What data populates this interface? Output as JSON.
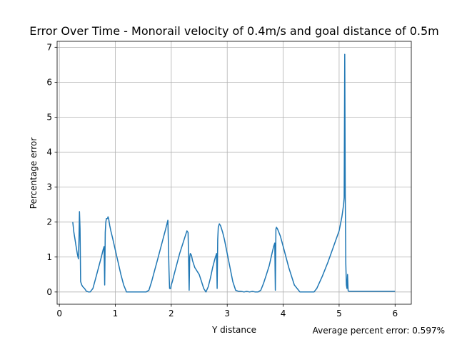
{
  "chart_data": {
    "type": "line",
    "title": "Error Over Time - Monorail velocity of 0.4m/s and goal distance of 0.5m",
    "xlabel": "Y distance",
    "ylabel": "Percentage error",
    "xlim": [
      -0.04,
      6.29
    ],
    "ylim": [
      -0.35,
      7.17
    ],
    "xticks": [
      0,
      1,
      2,
      3,
      4,
      5,
      6
    ],
    "yticks": [
      0,
      1,
      2,
      3,
      4,
      5,
      6,
      7
    ],
    "grid": true,
    "annotation": "Average percent error: 0.597%",
    "series": [
      {
        "color": "#1f77b4",
        "x": [
          0.24,
          0.26,
          0.28,
          0.3,
          0.32,
          0.34,
          0.35,
          0.36,
          0.37,
          0.38,
          0.39,
          0.4,
          0.42,
          0.45,
          0.48,
          0.52,
          0.55,
          0.6,
          0.65,
          0.7,
          0.75,
          0.78,
          0.8,
          0.81,
          0.82,
          0.83,
          0.84,
          0.86,
          0.87,
          0.88,
          0.89,
          0.9,
          0.92,
          0.95,
          1.0,
          1.05,
          1.1,
          1.15,
          1.2,
          1.25,
          1.4,
          1.55,
          1.6,
          1.65,
          1.7,
          1.75,
          1.8,
          1.85,
          1.9,
          1.94,
          1.96,
          1.97,
          1.99,
          2.0,
          2.02,
          2.05,
          2.1,
          2.15,
          2.2,
          2.25,
          2.28,
          2.3,
          2.32,
          2.33,
          2.34,
          2.36,
          2.38,
          2.42,
          2.46,
          2.5,
          2.54,
          2.58,
          2.62,
          2.66,
          2.7,
          2.74,
          2.78,
          2.81,
          2.82,
          2.83,
          2.84,
          2.86,
          2.88,
          2.9,
          2.92,
          2.95,
          3.0,
          3.05,
          3.1,
          3.15,
          3.2,
          3.25,
          3.3,
          3.35,
          3.4,
          3.45,
          3.5,
          3.55,
          3.6,
          3.65,
          3.7,
          3.75,
          3.8,
          3.83,
          3.85,
          3.86,
          3.87,
          3.88,
          3.9,
          3.95,
          4.0,
          4.1,
          4.2,
          4.3,
          4.4,
          4.45,
          4.5,
          4.55,
          4.6,
          4.7,
          4.8,
          4.9,
          5.0,
          5.05,
          5.08,
          5.09,
          5.1,
          5.11,
          5.12,
          5.13,
          5.14,
          5.15,
          5.16,
          5.17,
          5.2,
          5.3,
          5.4,
          5.5,
          5.6,
          5.7,
          5.8,
          5.9,
          6.0
        ],
        "y": [
          2.0,
          1.7,
          1.5,
          1.3,
          1.1,
          0.95,
          1.5,
          2.3,
          1.8,
          0.3,
          0.25,
          0.2,
          0.15,
          0.1,
          0.03,
          0.0,
          0.0,
          0.1,
          0.4,
          0.7,
          1.0,
          1.2,
          1.3,
          0.2,
          1.7,
          2.0,
          2.1,
          2.1,
          2.15,
          2.1,
          2.0,
          1.9,
          1.75,
          1.55,
          1.2,
          0.85,
          0.5,
          0.2,
          0.0,
          0.0,
          0.0,
          0.0,
          0.05,
          0.3,
          0.6,
          0.9,
          1.2,
          1.5,
          1.8,
          2.05,
          0.6,
          0.1,
          0.1,
          0.2,
          0.3,
          0.5,
          0.8,
          1.1,
          1.35,
          1.6,
          1.75,
          1.7,
          0.05,
          1.0,
          1.1,
          1.05,
          0.9,
          0.7,
          0.6,
          0.5,
          0.3,
          0.1,
          0.0,
          0.15,
          0.4,
          0.7,
          0.95,
          1.1,
          0.1,
          1.5,
          1.85,
          1.95,
          1.9,
          1.8,
          1.7,
          1.5,
          1.1,
          0.7,
          0.3,
          0.05,
          0.02,
          0.02,
          0.0,
          0.02,
          0.0,
          0.02,
          0.0,
          0.0,
          0.05,
          0.25,
          0.5,
          0.75,
          1.1,
          1.3,
          1.4,
          0.05,
          1.8,
          1.85,
          1.8,
          1.6,
          1.3,
          0.7,
          0.2,
          0.0,
          0.0,
          0.0,
          0.0,
          0.0,
          0.1,
          0.45,
          0.85,
          1.3,
          1.75,
          2.15,
          2.5,
          2.7,
          6.8,
          2.8,
          0.8,
          0.2,
          0.1,
          0.5,
          0.05,
          0.02,
          0.02,
          0.02,
          0.02,
          0.02,
          0.02,
          0.02,
          0.02,
          0.02,
          0.02
        ]
      }
    ]
  }
}
